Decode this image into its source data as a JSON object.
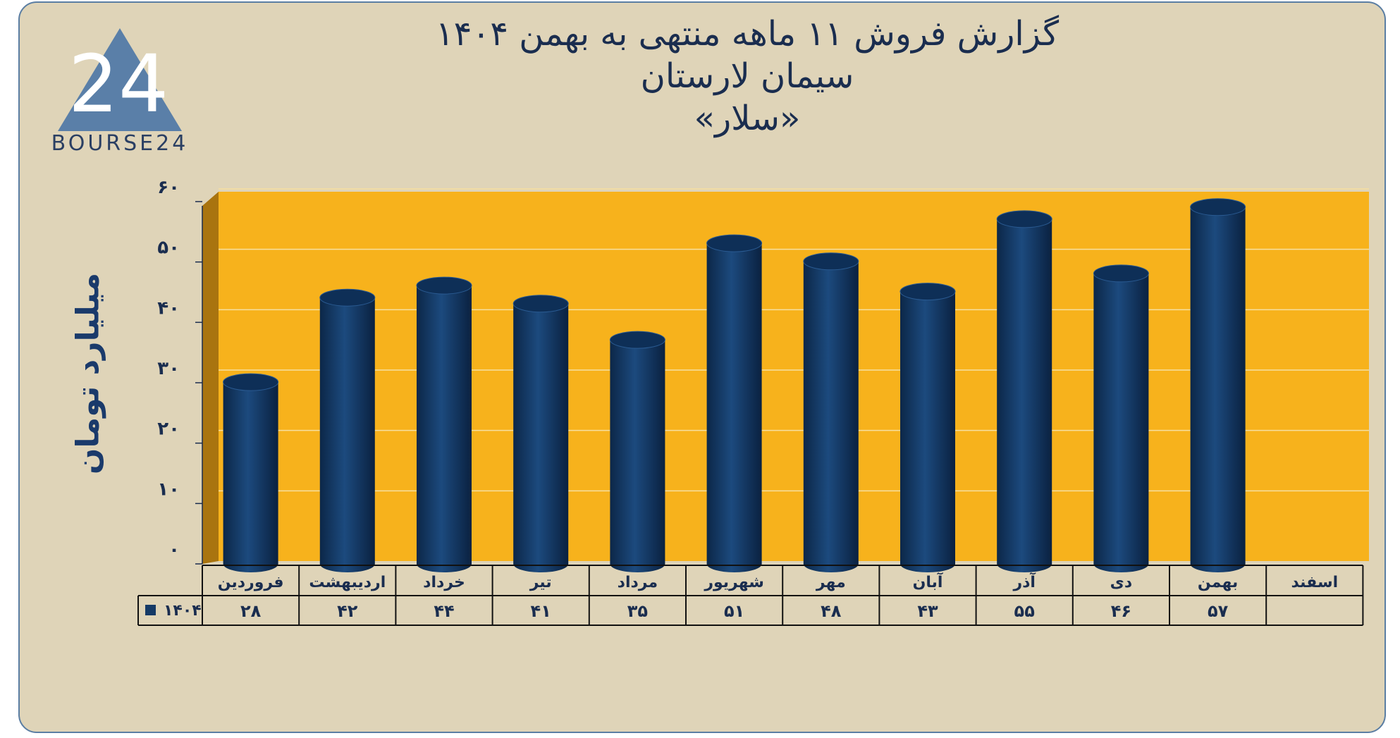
{
  "logo": {
    "icon": "bourse24-triangle-logo",
    "text": "BOURSE24"
  },
  "chart_data": {
    "type": "bar",
    "title_lines": [
      "گزارش  فروش ۱۱ ماهه منتهی به بهمن ۱۴۰۴",
      "سیمان لارستان",
      "«سلار»"
    ],
    "ylabel": "میلیارد تومان",
    "ylim": [
      0,
      60
    ],
    "yticks": [
      0,
      10,
      20,
      30,
      40,
      50,
      60
    ],
    "ytick_labels": [
      "۰",
      "۱۰",
      "۲۰",
      "۳۰",
      "۴۰",
      "۵۰",
      "۶۰"
    ],
    "categories": [
      "فروردین",
      "اردیبهشت",
      "خرداد",
      "تیر",
      "مرداد",
      "شهریور",
      "مهر",
      "آبان",
      "آذر",
      "دی",
      "بهمن",
      "اسفند"
    ],
    "series": [
      {
        "name": "۱۴۰۴",
        "values": [
          28,
          42,
          44,
          41,
          35,
          51,
          48,
          43,
          55,
          46,
          57,
          null
        ],
        "value_labels": [
          "۲۸",
          "۴۲",
          "۴۴",
          "۴۱",
          "۳۵",
          "۵۱",
          "۴۸",
          "۴۳",
          "۵۵",
          "۴۶",
          "۵۷",
          ""
        ]
      }
    ],
    "colors": {
      "bar": "#153a66",
      "plot_background": "#f7b21c",
      "panel": "#dfd4b8",
      "text": "#1a2d4f"
    },
    "grid": true,
    "legend": "data-table"
  }
}
